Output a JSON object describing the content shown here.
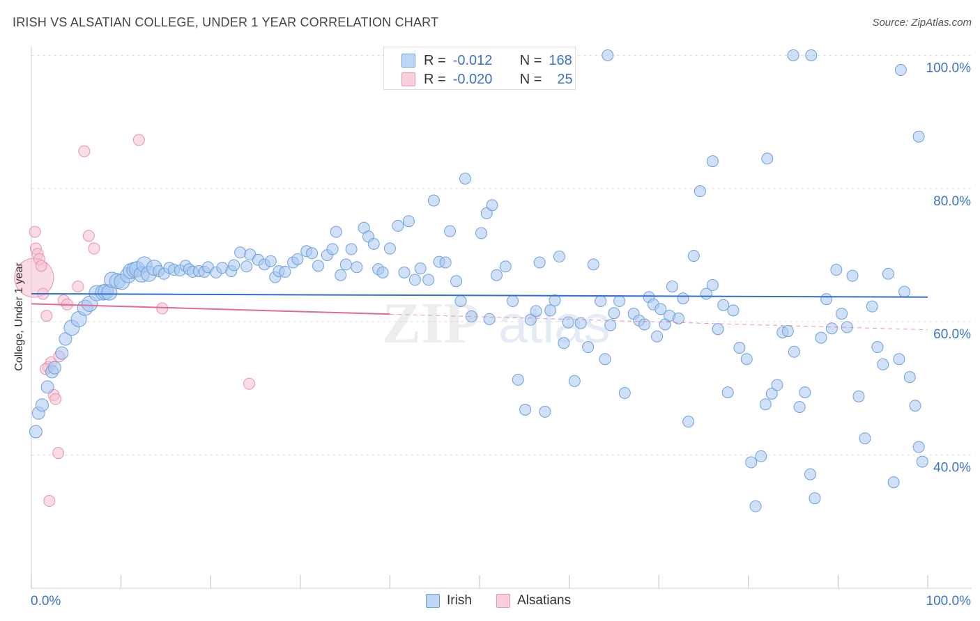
{
  "title": "IRISH VS ALSATIAN COLLEGE, UNDER 1 YEAR CORRELATION CHART",
  "source": "Source: ZipAtlas.com",
  "watermark": "ZIPatlas",
  "legend": {
    "rows": [
      {
        "r_label": "R =",
        "r_value": "-0.012",
        "n_label": "N =",
        "n_value": "168"
      },
      {
        "r_label": "R =",
        "r_value": "-0.020",
        "n_label": "N =",
        "n_value": "25"
      }
    ]
  },
  "bottom_legend": {
    "irish": "Irish",
    "alsatians": "Alsatians"
  },
  "colors": {
    "irish_fill": "#a9c8f0",
    "irish_stroke": "#6d9fe0",
    "irish_line": "#2e6fd0",
    "alsatian_fill": "#f6bfd0",
    "alsatian_stroke": "#ea93ad",
    "alsatian_line": "#e26a94",
    "axis_label": "#3a72c8",
    "grid": "#dddddd"
  },
  "chart_data": {
    "type": "scatter",
    "title": "IRISH VS ALSATIAN COLLEGE, UNDER 1 YEAR CORRELATION CHART",
    "xlabel": "",
    "ylabel": "College, Under 1 year",
    "xlim": [
      0,
      100
    ],
    "ylim": [
      19,
      100
    ],
    "x_tick_labels": [
      "0.0%",
      "100.0%"
    ],
    "y_ticks": [
      40,
      60,
      80,
      100
    ],
    "y_tick_labels": [
      "40.0%",
      "60.0%",
      "80.0%",
      "100.0%"
    ],
    "grid": true,
    "legend_position": "top-center",
    "series": [
      {
        "name": "Irish",
        "r": -0.012,
        "n": 168,
        "trend": [
          [
            0,
            64.2
          ],
          [
            100,
            63.7
          ]
        ],
        "points": [
          [
            0.5,
            43.5
          ],
          [
            0.8,
            46.3
          ],
          [
            1.2,
            47.5
          ],
          [
            1.8,
            50.2
          ],
          [
            2.3,
            52.5
          ],
          [
            2.6,
            53.1
          ],
          [
            3.4,
            55.3
          ],
          [
            3.8,
            57.4
          ],
          [
            4.5,
            59.1
          ],
          [
            5.3,
            60.4
          ],
          [
            6.0,
            62.1
          ],
          [
            6.5,
            62.7
          ],
          [
            7.3,
            64.3
          ],
          [
            8.0,
            64.4
          ],
          [
            8.3,
            64.5
          ],
          [
            8.7,
            64.4
          ],
          [
            9.0,
            66.3
          ],
          [
            9.6,
            66.1
          ],
          [
            10.1,
            66.0
          ],
          [
            10.8,
            67.0
          ],
          [
            11.1,
            67.6
          ],
          [
            11.5,
            67.8
          ],
          [
            11.8,
            67.9
          ],
          [
            12.3,
            67.1
          ],
          [
            12.6,
            68.6
          ],
          [
            13.1,
            67.2
          ],
          [
            13.7,
            68.1
          ],
          [
            14.2,
            67.6
          ],
          [
            14.8,
            67.2
          ],
          [
            15.4,
            68.1
          ],
          [
            15.9,
            67.8
          ],
          [
            16.6,
            67.7
          ],
          [
            17.2,
            68.4
          ],
          [
            17.6,
            67.9
          ],
          [
            18.0,
            67.5
          ],
          [
            18.7,
            67.6
          ],
          [
            19.3,
            67.5
          ],
          [
            19.7,
            68.2
          ],
          [
            20.6,
            67.4
          ],
          [
            21.3,
            68.1
          ],
          [
            22.3,
            67.6
          ],
          [
            22.6,
            68.5
          ],
          [
            23.3,
            70.4
          ],
          [
            24.0,
            68.3
          ],
          [
            24.4,
            70.1
          ],
          [
            25.3,
            69.3
          ],
          [
            26.0,
            68.6
          ],
          [
            26.7,
            69.1
          ],
          [
            27.2,
            66.7
          ],
          [
            27.6,
            67.6
          ],
          [
            28.3,
            67.5
          ],
          [
            29.2,
            68.9
          ],
          [
            29.7,
            69.4
          ],
          [
            30.7,
            70.6
          ],
          [
            31.3,
            70.3
          ],
          [
            32.0,
            68.4
          ],
          [
            33.0,
            70.0
          ],
          [
            33.6,
            70.9
          ],
          [
            34.0,
            73.5
          ],
          [
            34.5,
            67.0
          ],
          [
            35.1,
            68.6
          ],
          [
            35.7,
            70.9
          ],
          [
            36.3,
            68.2
          ],
          [
            37.1,
            74.1
          ],
          [
            37.6,
            72.8
          ],
          [
            38.2,
            71.7
          ],
          [
            38.7,
            67.9
          ],
          [
            39.2,
            67.4
          ],
          [
            40.0,
            71.0
          ],
          [
            40.9,
            74.4
          ],
          [
            41.6,
            67.4
          ],
          [
            42.1,
            75.1
          ],
          [
            42.8,
            66.3
          ],
          [
            43.4,
            68.0
          ],
          [
            44.3,
            66.3
          ],
          [
            44.9,
            78.2
          ],
          [
            45.5,
            69.0
          ],
          [
            46.2,
            68.9
          ],
          [
            46.7,
            73.6
          ],
          [
            47.4,
            66.1
          ],
          [
            47.9,
            63.1
          ],
          [
            48.4,
            81.5
          ],
          [
            49.1,
            60.8
          ],
          [
            50.2,
            73.3
          ],
          [
            50.8,
            76.3
          ],
          [
            51.1,
            60.4
          ],
          [
            51.4,
            77.5
          ],
          [
            51.9,
            67.0
          ],
          [
            52.9,
            68.3
          ],
          [
            53.7,
            63.1
          ],
          [
            54.3,
            51.3
          ],
          [
            55.1,
            46.8
          ],
          [
            55.7,
            60.3
          ],
          [
            56.3,
            61.6
          ],
          [
            56.7,
            68.9
          ],
          [
            57.3,
            46.5
          ],
          [
            57.9,
            61.7
          ],
          [
            58.4,
            63.2
          ],
          [
            58.9,
            69.8
          ],
          [
            59.4,
            56.8
          ],
          [
            59.9,
            59.9
          ],
          [
            60.6,
            51.1
          ],
          [
            61.3,
            59.8
          ],
          [
            62.1,
            56.2
          ],
          [
            62.7,
            68.6
          ],
          [
            63.5,
            63.1
          ],
          [
            64.0,
            54.4
          ],
          [
            64.6,
            59.5
          ],
          [
            65.0,
            61.3
          ],
          [
            65.6,
            63.1
          ],
          [
            66.2,
            49.3
          ],
          [
            67.2,
            61.2
          ],
          [
            67.8,
            60.2
          ],
          [
            68.4,
            59.6
          ],
          [
            68.9,
            63.7
          ],
          [
            69.4,
            62.6
          ],
          [
            69.8,
            57.8
          ],
          [
            70.2,
            61.9
          ],
          [
            70.7,
            59.6
          ],
          [
            71.2,
            60.9
          ],
          [
            71.5,
            65.3
          ],
          [
            72.2,
            60.5
          ],
          [
            72.7,
            63.5
          ],
          [
            73.3,
            45.0
          ],
          [
            73.9,
            69.9
          ],
          [
            74.6,
            79.6
          ],
          [
            75.3,
            64.2
          ],
          [
            76.0,
            65.5
          ],
          [
            76.6,
            58.9
          ],
          [
            77.2,
            62.5
          ],
          [
            77.7,
            49.4
          ],
          [
            78.3,
            61.7
          ],
          [
            79.0,
            56.1
          ],
          [
            79.8,
            54.4
          ],
          [
            80.3,
            38.9
          ],
          [
            80.8,
            32.3
          ],
          [
            81.4,
            39.8
          ],
          [
            81.9,
            47.6
          ],
          [
            82.6,
            49.2
          ],
          [
            83.2,
            50.5
          ],
          [
            83.8,
            58.4
          ],
          [
            84.4,
            58.6
          ],
          [
            85.1,
            55.5
          ],
          [
            85.7,
            47.2
          ],
          [
            86.3,
            49.4
          ],
          [
            86.9,
            37.1
          ],
          [
            87.4,
            33.5
          ],
          [
            88.1,
            57.6
          ],
          [
            88.7,
            63.4
          ],
          [
            89.3,
            59.0
          ],
          [
            89.8,
            67.8
          ],
          [
            90.4,
            61.2
          ],
          [
            91.0,
            59.2
          ],
          [
            91.6,
            66.9
          ],
          [
            92.3,
            48.8
          ],
          [
            93.0,
            42.5
          ],
          [
            93.8,
            62.3
          ],
          [
            94.4,
            56.2
          ],
          [
            95.0,
            53.6
          ],
          [
            95.6,
            67.2
          ],
          [
            96.2,
            35.9
          ],
          [
            96.8,
            54.4
          ],
          [
            97.4,
            64.5
          ],
          [
            98.0,
            51.7
          ],
          [
            98.6,
            47.4
          ],
          [
            99.0,
            41.2
          ],
          [
            99.4,
            39.0
          ],
          [
            64.3,
            100.0
          ],
          [
            82.1,
            84.5
          ],
          [
            76.0,
            84.1
          ],
          [
            85.0,
            100.0
          ],
          [
            87.0,
            100.0
          ],
          [
            97.0,
            97.8
          ],
          [
            99.0,
            87.8
          ]
        ]
      },
      {
        "name": "Alsatians",
        "r": -0.02,
        "n": 25,
        "trend": [
          [
            0,
            62.7
          ],
          [
            100,
            58.8
          ]
        ],
        "points": [
          [
            0.3,
            66.6
          ],
          [
            0.5,
            71.0
          ],
          [
            0.7,
            70.2
          ],
          [
            0.9,
            69.4
          ],
          [
            1.1,
            68.4
          ],
          [
            1.3,
            64.2
          ],
          [
            1.7,
            60.9
          ],
          [
            1.9,
            53.2
          ],
          [
            2.2,
            53.9
          ],
          [
            2.5,
            49.0
          ],
          [
            2.7,
            48.4
          ],
          [
            3.0,
            40.3
          ],
          [
            3.6,
            63.2
          ],
          [
            5.2,
            65.3
          ],
          [
            5.9,
            85.6
          ],
          [
            6.4,
            72.9
          ],
          [
            7.0,
            71.0
          ],
          [
            12.0,
            87.3
          ],
          [
            14.6,
            62.0
          ],
          [
            24.3,
            50.7
          ],
          [
            2.0,
            33.1
          ],
          [
            0.4,
            73.5
          ],
          [
            1.6,
            52.9
          ],
          [
            4.0,
            62.6
          ],
          [
            3.1,
            54.8
          ]
        ]
      }
    ]
  }
}
